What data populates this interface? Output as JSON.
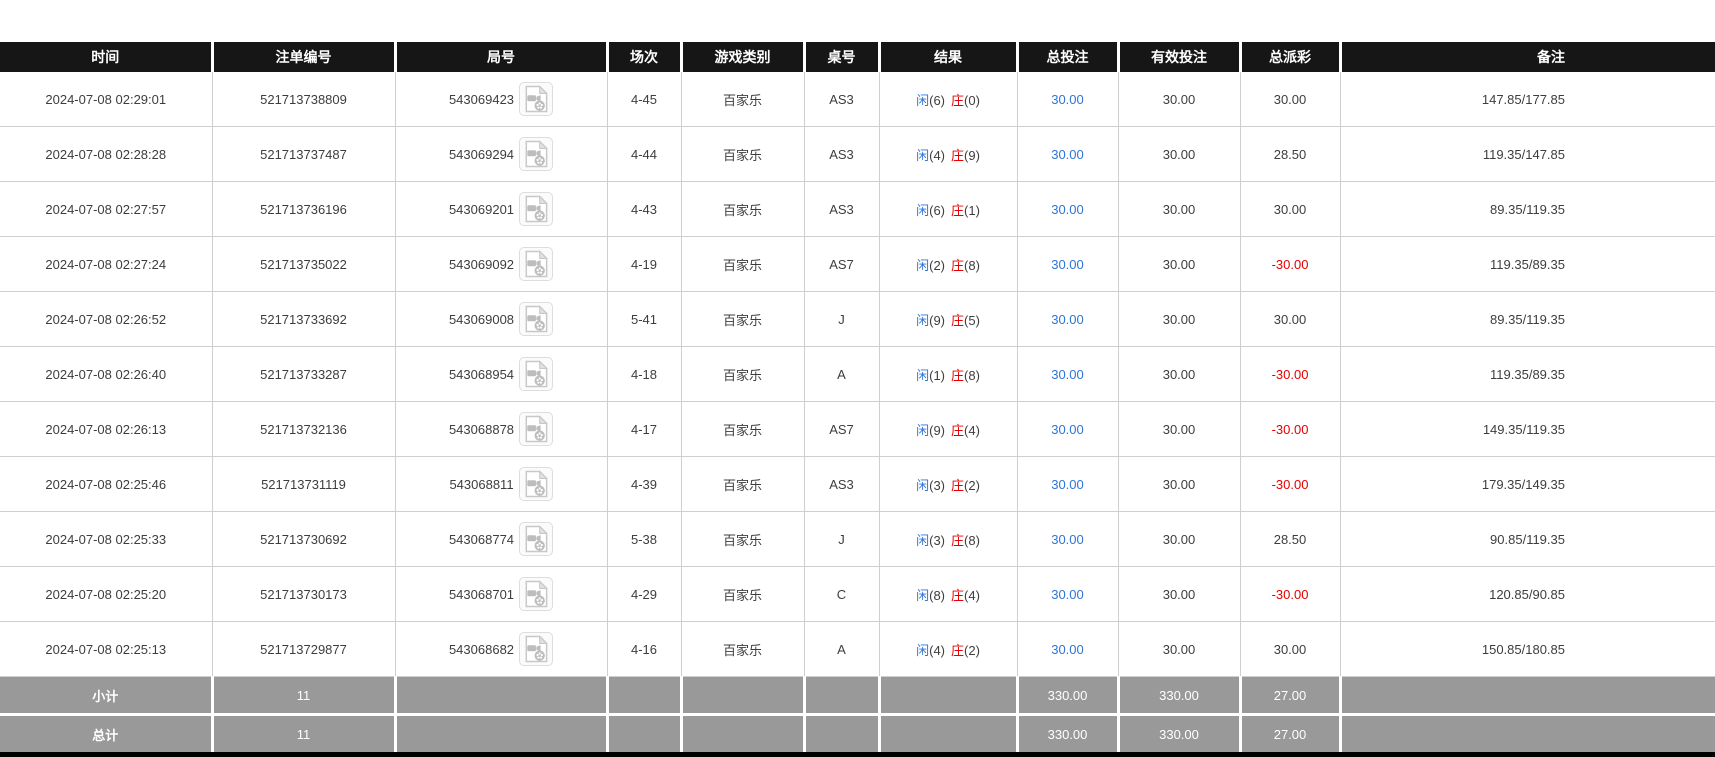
{
  "colors": {
    "header_bg": "#161616",
    "header_text": "#ffffff",
    "row_text": "#3d3d3d",
    "border": "#cfcfcf",
    "blue_accent": "#2e75d8",
    "red_accent": "#e60000",
    "footer_bg": "#999999",
    "footer_text": "#ffffff",
    "bottom_bar": "#000000"
  },
  "icons": {
    "video_icon_name": "video-replay-icon"
  },
  "table": {
    "columns": [
      {
        "id": "time",
        "label": "时间"
      },
      {
        "id": "bet_no",
        "label": "注单编号"
      },
      {
        "id": "round_no",
        "label": "局号"
      },
      {
        "id": "session",
        "label": "场次"
      },
      {
        "id": "game_type",
        "label": "游戏类别"
      },
      {
        "id": "table_no",
        "label": "桌号"
      },
      {
        "id": "result",
        "label": "结果"
      },
      {
        "id": "total_bet",
        "label": "总投注"
      },
      {
        "id": "valid_bet",
        "label": "有效投注"
      },
      {
        "id": "payout",
        "label": "总派彩"
      },
      {
        "id": "remark",
        "label": "备注"
      }
    ],
    "player_label": "闲",
    "banker_label": "庄",
    "rows": [
      {
        "time": "2024-07-08 02:29:01",
        "bet_no": "521713738809",
        "round_no": "543069423",
        "session": "4-45",
        "game_type": "百家乐",
        "table_no": "AS3",
        "player_score": "(6)",
        "banker_score": "(0)",
        "total_bet": "30.00",
        "valid_bet": "30.00",
        "payout": "30.00",
        "remark": "147.85/177.85"
      },
      {
        "time": "2024-07-08 02:28:28",
        "bet_no": "521713737487",
        "round_no": "543069294",
        "session": "4-44",
        "game_type": "百家乐",
        "table_no": "AS3",
        "player_score": "(4)",
        "banker_score": "(9)",
        "total_bet": "30.00",
        "valid_bet": "30.00",
        "payout": "28.50",
        "remark": "119.35/147.85"
      },
      {
        "time": "2024-07-08 02:27:57",
        "bet_no": "521713736196",
        "round_no": "543069201",
        "session": "4-43",
        "game_type": "百家乐",
        "table_no": "AS3",
        "player_score": "(6)",
        "banker_score": "(1)",
        "total_bet": "30.00",
        "valid_bet": "30.00",
        "payout": "30.00",
        "remark": "89.35/119.35"
      },
      {
        "time": "2024-07-08 02:27:24",
        "bet_no": "521713735022",
        "round_no": "543069092",
        "session": "4-19",
        "game_type": "百家乐",
        "table_no": "AS7",
        "player_score": "(2)",
        "banker_score": "(8)",
        "total_bet": "30.00",
        "valid_bet": "30.00",
        "payout": "-30.00",
        "remark": "119.35/89.35"
      },
      {
        "time": "2024-07-08 02:26:52",
        "bet_no": "521713733692",
        "round_no": "543069008",
        "session": "5-41",
        "game_type": "百家乐",
        "table_no": "J",
        "player_score": "(9)",
        "banker_score": "(5)",
        "total_bet": "30.00",
        "valid_bet": "30.00",
        "payout": "30.00",
        "remark": "89.35/119.35"
      },
      {
        "time": "2024-07-08 02:26:40",
        "bet_no": "521713733287",
        "round_no": "543068954",
        "session": "4-18",
        "game_type": "百家乐",
        "table_no": "A",
        "player_score": "(1)",
        "banker_score": "(8)",
        "total_bet": "30.00",
        "valid_bet": "30.00",
        "payout": "-30.00",
        "remark": "119.35/89.35"
      },
      {
        "time": "2024-07-08 02:26:13",
        "bet_no": "521713732136",
        "round_no": "543068878",
        "session": "4-17",
        "game_type": "百家乐",
        "table_no": "AS7",
        "player_score": "(9)",
        "banker_score": "(4)",
        "total_bet": "30.00",
        "valid_bet": "30.00",
        "payout": "-30.00",
        "remark": "149.35/119.35"
      },
      {
        "time": "2024-07-08 02:25:46",
        "bet_no": "521713731119",
        "round_no": "543068811",
        "session": "4-39",
        "game_type": "百家乐",
        "table_no": "AS3",
        "player_score": "(3)",
        "banker_score": "(2)",
        "total_bet": "30.00",
        "valid_bet": "30.00",
        "payout": "-30.00",
        "remark": "179.35/149.35"
      },
      {
        "time": "2024-07-08 02:25:33",
        "bet_no": "521713730692",
        "round_no": "543068774",
        "session": "5-38",
        "game_type": "百家乐",
        "table_no": "J",
        "player_score": "(3)",
        "banker_score": "(8)",
        "total_bet": "30.00",
        "valid_bet": "30.00",
        "payout": "28.50",
        "remark": "90.85/119.35"
      },
      {
        "time": "2024-07-08 02:25:20",
        "bet_no": "521713730173",
        "round_no": "543068701",
        "session": "4-29",
        "game_type": "百家乐",
        "table_no": "C",
        "player_score": "(8)",
        "banker_score": "(4)",
        "total_bet": "30.00",
        "valid_bet": "30.00",
        "payout": "-30.00",
        "remark": "120.85/90.85"
      },
      {
        "time": "2024-07-08 02:25:13",
        "bet_no": "521713729877",
        "round_no": "543068682",
        "session": "4-16",
        "game_type": "百家乐",
        "table_no": "A",
        "player_score": "(4)",
        "banker_score": "(2)",
        "total_bet": "30.00",
        "valid_bet": "30.00",
        "payout": "30.00",
        "remark": "150.85/180.85"
      }
    ],
    "footer_rows": [
      {
        "id": "subtotal",
        "label": "小计",
        "count": "11",
        "total_bet": "330.00",
        "valid_bet": "330.00",
        "payout": "27.00"
      },
      {
        "id": "total",
        "label": "总计",
        "count": "11",
        "total_bet": "330.00",
        "valid_bet": "330.00",
        "payout": "27.00"
      }
    ]
  }
}
